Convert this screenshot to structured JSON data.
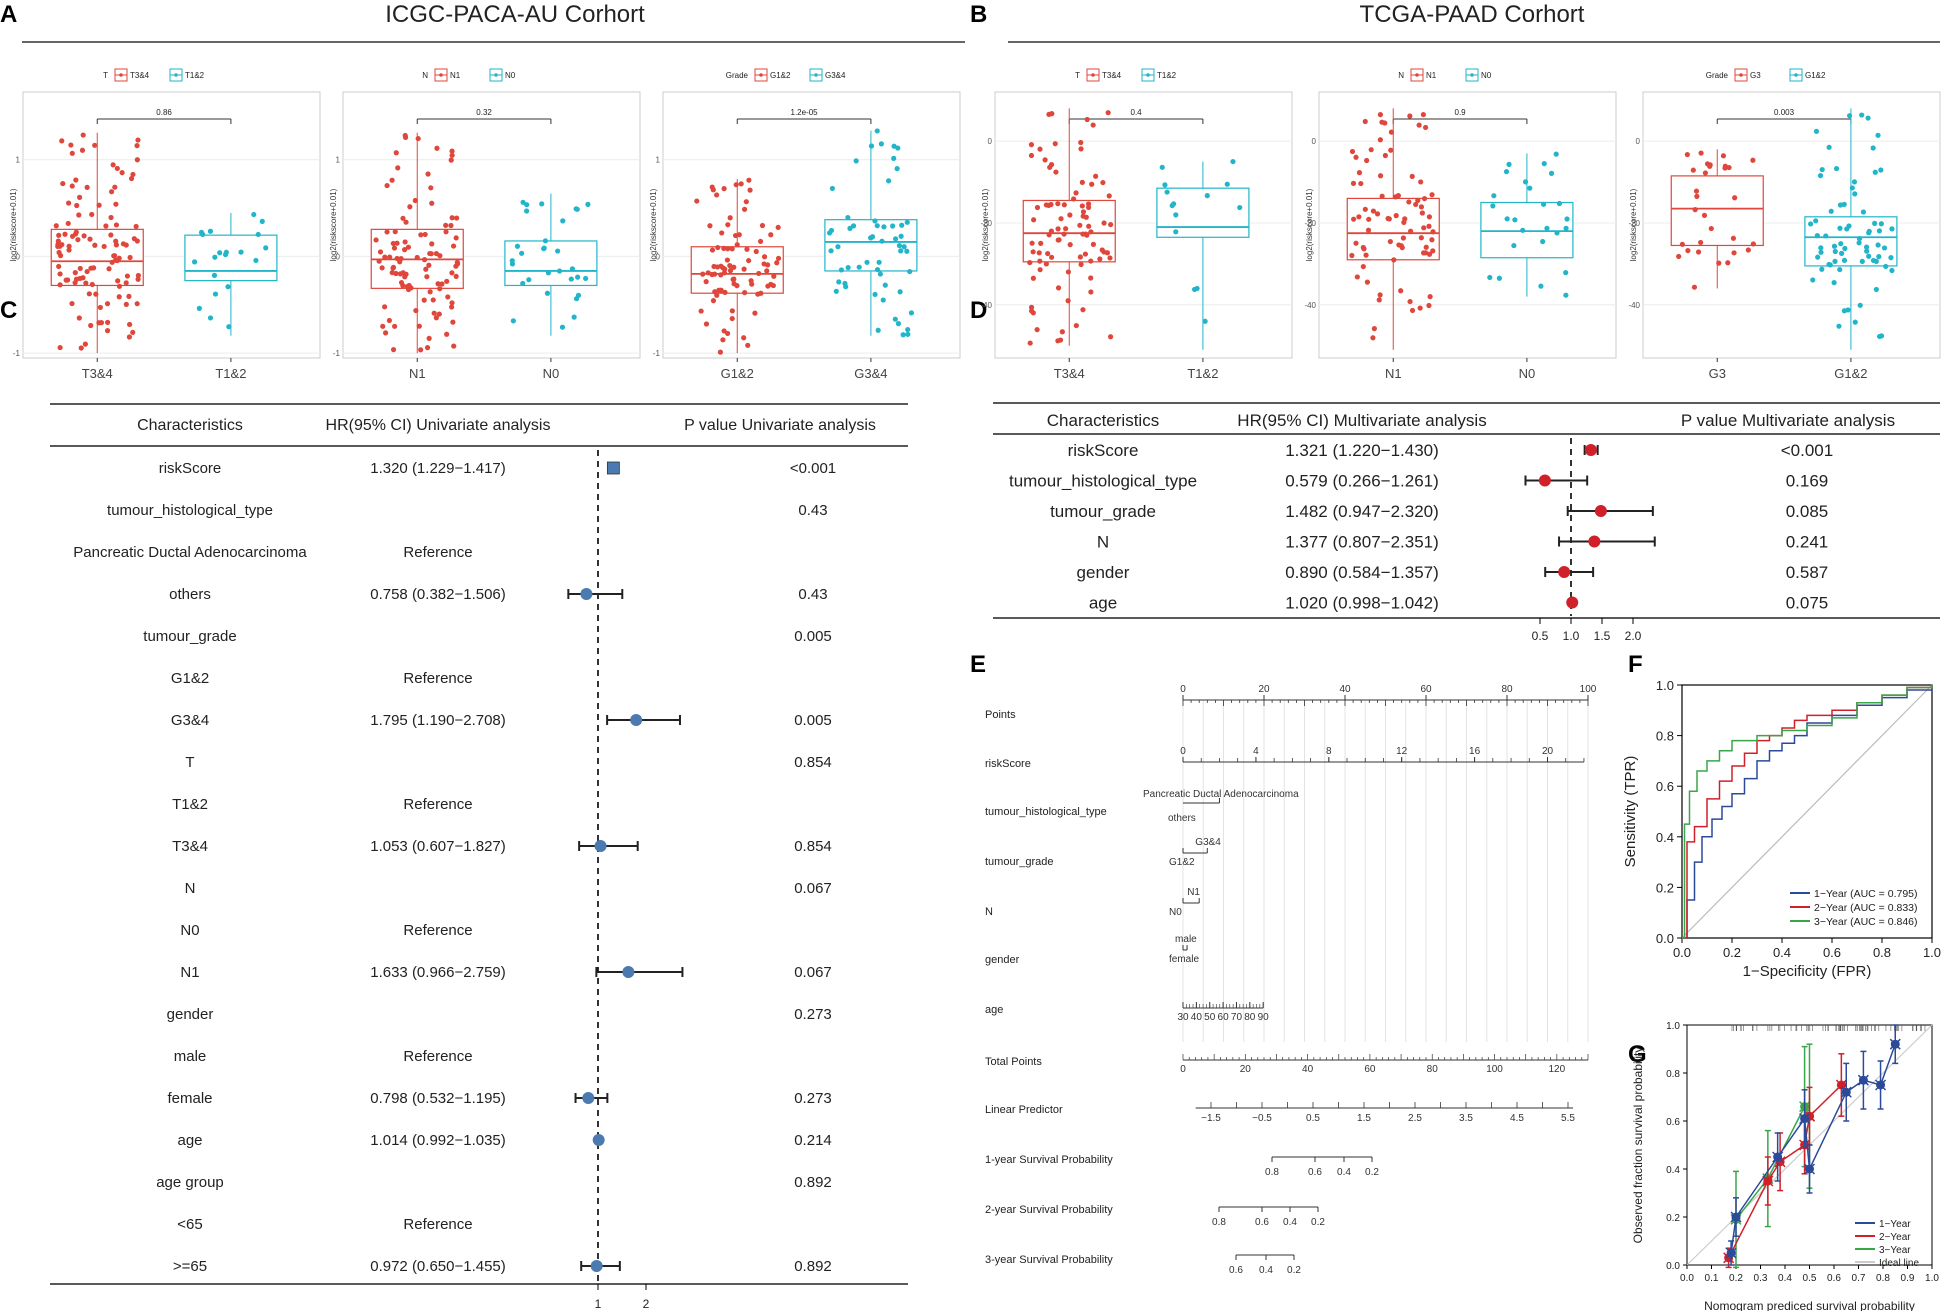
{
  "panels": {
    "A": "A",
    "B": "B",
    "C": "C",
    "D": "D",
    "E": "E",
    "F": "F",
    "G": "G"
  },
  "headers": {
    "A": "ICGC-PACA-AU Corhort",
    "B": "TCGA-PAAD Corhort"
  },
  "colors": {
    "red": "#e0473c",
    "cyan": "#22b5c9",
    "blue": "#2b4a9a",
    "forest_blue": "#4a7ab0",
    "dark_red": "#d0202a",
    "green": "#3aa64a",
    "grey": "#aaaaaa"
  },
  "chart_data": [
    {
      "type": "boxplot",
      "panel": "A",
      "ylabel": "log2(riskscore+0.01)",
      "ylim": [
        -1.05,
        1.7
      ],
      "yticks": [
        -1,
        0,
        1
      ],
      "legend": {
        "title": "T",
        "labels": [
          "T3&4",
          "T1&2"
        ]
      },
      "categories": [
        "T3&4",
        "T1&2"
      ],
      "pvalue": "0.86",
      "groups": [
        {
          "q1": -0.3,
          "median": -0.05,
          "q3": 0.28,
          "lo": -1.0,
          "hi": 1.28,
          "n": 110
        },
        {
          "q1": -0.25,
          "median": -0.15,
          "q3": 0.22,
          "lo": -0.82,
          "hi": 0.45,
          "n": 20
        }
      ]
    },
    {
      "type": "boxplot",
      "panel": "A",
      "ylabel": "log2(riskscore+0.01)",
      "ylim": [
        -1.05,
        1.7
      ],
      "yticks": [
        -1,
        0,
        1
      ],
      "legend": {
        "title": "N",
        "labels": [
          "N1",
          "N0"
        ]
      },
      "categories": [
        "N1",
        "N0"
      ],
      "pvalue": "0.32",
      "groups": [
        {
          "q1": -0.33,
          "median": -0.03,
          "q3": 0.28,
          "lo": -1.0,
          "hi": 1.28,
          "n": 100
        },
        {
          "q1": -0.3,
          "median": -0.15,
          "q3": 0.16,
          "lo": -0.82,
          "hi": 0.65,
          "n": 30
        }
      ]
    },
    {
      "type": "boxplot",
      "panel": "A",
      "ylabel": "log2(riskscore+0.01)",
      "ylim": [
        -1.05,
        1.7
      ],
      "yticks": [
        -1,
        0,
        1
      ],
      "legend": {
        "title": "Grade",
        "labels": [
          "G1&2",
          "G3&4"
        ]
      },
      "categories": [
        "G1&2",
        "G3&4"
      ],
      "pvalue": "1.2e-05",
      "groups": [
        {
          "q1": -0.38,
          "median": -0.18,
          "q3": 0.1,
          "lo": -1.0,
          "hi": 0.8,
          "n": 85
        },
        {
          "q1": -0.15,
          "median": 0.15,
          "q3": 0.38,
          "lo": -0.82,
          "hi": 1.3,
          "n": 55
        }
      ]
    },
    {
      "type": "boxplot",
      "panel": "B",
      "ylabel": "log2(riskscore+0.01)",
      "ylim": [
        -53,
        12
      ],
      "yticks": [
        0,
        -20,
        -40
      ],
      "legend": {
        "title": "T",
        "labels": [
          "T3&4",
          "T1&2"
        ]
      },
      "categories": [
        "T3&4",
        "T1&2"
      ],
      "pvalue": "0.4",
      "groups": [
        {
          "q1": -29.5,
          "median": -22.5,
          "q3": -14.5,
          "lo": -50,
          "hi": 8,
          "n": 90
        },
        {
          "q1": -23.5,
          "median": -21,
          "q3": -11.5,
          "lo": -51,
          "hi": -5,
          "n": 14
        }
      ]
    },
    {
      "type": "boxplot",
      "panel": "B",
      "ylabel": "log2(riskscore+0.01)",
      "ylim": [
        -53,
        12
      ],
      "yticks": [
        0,
        -20,
        -40
      ],
      "legend": {
        "title": "N",
        "labels": [
          "N1",
          "N0"
        ]
      },
      "categories": [
        "N1",
        "N0"
      ],
      "pvalue": "0.9",
      "groups": [
        {
          "q1": -29,
          "median": -22.5,
          "q3": -14,
          "lo": -51,
          "hi": 8,
          "n": 80
        },
        {
          "q1": -28.5,
          "median": -22,
          "q3": -15,
          "lo": -38,
          "hi": -3,
          "n": 25
        }
      ]
    },
    {
      "type": "boxplot",
      "panel": "B",
      "ylabel": "log2(riskscore+0.01)",
      "ylim": [
        -53,
        12
      ],
      "yticks": [
        0,
        -20,
        -40
      ],
      "legend": {
        "title": "Grade",
        "labels": [
          "G3",
          "G1&2"
        ]
      },
      "categories": [
        "G3",
        "G1&2"
      ],
      "pvalue": "0.003",
      "groups": [
        {
          "q1": -25.5,
          "median": -16.5,
          "q3": -8.5,
          "lo": -36,
          "hi": -2,
          "n": 30
        },
        {
          "q1": -30.5,
          "median": -23.5,
          "q3": -18.5,
          "lo": -51,
          "hi": 8,
          "n": 70
        }
      ]
    },
    {
      "type": "forest",
      "panel": "C",
      "columns": [
        "Characteristics",
        "HR(95% CI) Univariate analysis",
        "P value Univariate analysis"
      ],
      "xlim": [
        0.3,
        3.0
      ],
      "ref": 1,
      "xticks": [
        "1",
        "2"
      ],
      "rows": [
        {
          "label": "riskScore",
          "hr": "1.320 (1.229−1.417)",
          "p": "<0.001",
          "est": 1.32,
          "lo": 1.229,
          "hi": 1.417,
          "square": true
        },
        {
          "label": "tumour_histological_type",
          "hr": "",
          "p": "0.43"
        },
        {
          "label": "Pancreatic Ductal Adenocarcinoma",
          "hr": "Reference",
          "p": ""
        },
        {
          "label": "others",
          "hr": "0.758 (0.382−1.506)",
          "p": "0.43",
          "est": 0.758,
          "lo": 0.382,
          "hi": 1.506
        },
        {
          "label": "tumour_grade",
          "hr": "",
          "p": "0.005"
        },
        {
          "label": "G1&2",
          "hr": "Reference",
          "p": ""
        },
        {
          "label": "G3&4",
          "hr": "1.795 (1.190−2.708)",
          "p": "0.005",
          "est": 1.795,
          "lo": 1.19,
          "hi": 2.708
        },
        {
          "label": "T",
          "hr": "",
          "p": "0.854"
        },
        {
          "label": "T1&2",
          "hr": "Reference",
          "p": ""
        },
        {
          "label": "T3&4",
          "hr": "1.053 (0.607−1.827)",
          "p": "0.854",
          "est": 1.053,
          "lo": 0.607,
          "hi": 1.827
        },
        {
          "label": "N",
          "hr": "",
          "p": "0.067"
        },
        {
          "label": "N0",
          "hr": "Reference",
          "p": ""
        },
        {
          "label": "N1",
          "hr": "1.633 (0.966−2.759)",
          "p": "0.067",
          "est": 1.633,
          "lo": 0.966,
          "hi": 2.759
        },
        {
          "label": "gender",
          "hr": "",
          "p": "0.273"
        },
        {
          "label": "male",
          "hr": "Reference",
          "p": ""
        },
        {
          "label": "female",
          "hr": "0.798 (0.532−1.195)",
          "p": "0.273",
          "est": 0.798,
          "lo": 0.532,
          "hi": 1.195
        },
        {
          "label": "age",
          "hr": "1.014 (0.992−1.035)",
          "p": "0.214",
          "est": 1.014,
          "lo": 0.992,
          "hi": 1.035
        },
        {
          "label": "age group",
          "hr": "",
          "p": "0.892"
        },
        {
          "label": "<65",
          "hr": "Reference",
          "p": ""
        },
        {
          "label": ">=65",
          "hr": "0.972 (0.650−1.455)",
          "p": "0.892",
          "est": 0.972,
          "lo": 0.65,
          "hi": 1.455
        }
      ]
    },
    {
      "type": "forest",
      "panel": "D",
      "columns": [
        "Characteristics",
        "HR(95% CI) Multivariate analysis",
        "P value Multivariate analysis"
      ],
      "ref": 1,
      "xticks": [
        "0.5",
        "1.0",
        "1.5",
        "2.0"
      ],
      "rows": [
        {
          "label": "riskScore",
          "hr": "1.321 (1.220−1.430)",
          "p": "<0.001",
          "est": 1.321,
          "lo": 1.22,
          "hi": 1.43
        },
        {
          "label": "tumour_histological_type",
          "hr": "0.579 (0.266−1.261)",
          "p": "0.169",
          "est": 0.579,
          "lo": 0.266,
          "hi": 1.261
        },
        {
          "label": "tumour_grade",
          "hr": "1.482 (0.947−2.320)",
          "p": "0.085",
          "est": 1.482,
          "lo": 0.947,
          "hi": 2.32
        },
        {
          "label": "N",
          "hr": "1.377 (0.807−2.351)",
          "p": "0.241",
          "est": 1.377,
          "lo": 0.807,
          "hi": 2.351
        },
        {
          "label": "gender",
          "hr": "0.890 (0.584−1.357)",
          "p": "0.587",
          "est": 0.89,
          "lo": 0.584,
          "hi": 1.357
        },
        {
          "label": "age",
          "hr": "1.020 (0.998−1.042)",
          "p": "0.075",
          "est": 1.02,
          "lo": 0.998,
          "hi": 1.042
        }
      ]
    },
    {
      "type": "nomogram",
      "panel": "E",
      "rows": [
        {
          "label": "Points",
          "ticks": [
            "0",
            "20",
            "40",
            "60",
            "80",
            "100"
          ]
        },
        {
          "label": "riskScore",
          "ticks": [
            "0",
            "4",
            "8",
            "12",
            "16",
            "20"
          ]
        },
        {
          "label": "tumour_histological_type",
          "labels": [
            "Pancreatic Ductal Adenocarcinoma",
            "others"
          ]
        },
        {
          "label": "tumour_grade",
          "labels": [
            "G3&4",
            "G1&2"
          ]
        },
        {
          "label": "N",
          "labels": [
            "N1",
            "N0"
          ]
        },
        {
          "label": "gender",
          "labels": [
            "male",
            "female"
          ]
        },
        {
          "label": "age",
          "ticks": [
            "30",
            "40",
            "50",
            "60",
            "70",
            "80",
            "90"
          ]
        },
        {
          "label": "Total Points",
          "ticks": [
            "0",
            "20",
            "40",
            "60",
            "80",
            "100",
            "120"
          ]
        },
        {
          "label": "Linear Predictor",
          "ticks": [
            "−1.5",
            "−0.5",
            "0.5",
            "1.5",
            "2.5",
            "3.5",
            "4.5",
            "5.5"
          ]
        },
        {
          "label": "1-year Survival Probability",
          "ticks": [
            "0.8",
            "0.6",
            "0.4",
            "0.2"
          ]
        },
        {
          "label": "2-year Survival Probability",
          "ticks": [
            "0.8",
            "0.6",
            "0.4",
            "0.2"
          ]
        },
        {
          "label": "3-year Survival Probability",
          "ticks": [
            "0.6",
            "0.4",
            "0.2"
          ]
        }
      ]
    },
    {
      "type": "line",
      "panel": "F",
      "xlabel": "1−Specificity (FPR)",
      "ylabel": "Sensitivity (TPR)",
      "xlim": [
        0,
        1
      ],
      "ylim": [
        0,
        1
      ],
      "xticks": [
        "0.0",
        "0.2",
        "0.4",
        "0.6",
        "0.8",
        "1.0"
      ],
      "yticks": [
        "0.0",
        "0.2",
        "0.4",
        "0.6",
        "0.8",
        "1.0"
      ],
      "series": [
        {
          "name": "1−Year (AUC = 0.795)",
          "color": "#2b4a9a",
          "x": [
            0,
            0.02,
            0.05,
            0.08,
            0.12,
            0.16,
            0.2,
            0.25,
            0.3,
            0.35,
            0.4,
            0.45,
            0.5,
            0.6,
            0.7,
            0.8,
            0.9,
            1.0
          ],
          "y": [
            0,
            0.15,
            0.3,
            0.4,
            0.47,
            0.52,
            0.57,
            0.63,
            0.7,
            0.74,
            0.77,
            0.8,
            0.85,
            0.88,
            0.92,
            0.95,
            0.98,
            1.0
          ]
        },
        {
          "name": "2−Year (AUC = 0.833)",
          "color": "#d0202a",
          "x": [
            0,
            0.02,
            0.05,
            0.1,
            0.15,
            0.2,
            0.25,
            0.3,
            0.35,
            0.4,
            0.45,
            0.5,
            0.6,
            0.7,
            0.8,
            0.9,
            1.0
          ],
          "y": [
            0,
            0.38,
            0.44,
            0.55,
            0.62,
            0.68,
            0.73,
            0.78,
            0.8,
            0.83,
            0.86,
            0.88,
            0.9,
            0.93,
            0.96,
            0.99,
            1.0
          ]
        },
        {
          "name": "3−Year (AUC = 0.846)",
          "color": "#3aa64a",
          "x": [
            0,
            0.01,
            0.03,
            0.06,
            0.1,
            0.15,
            0.2,
            0.3,
            0.4,
            0.5,
            0.6,
            0.7,
            0.8,
            0.9,
            1.0
          ],
          "y": [
            0,
            0.45,
            0.58,
            0.66,
            0.7,
            0.74,
            0.78,
            0.8,
            0.82,
            0.84,
            0.87,
            0.93,
            0.96,
            0.99,
            1.0
          ]
        }
      ]
    },
    {
      "type": "scatter",
      "panel": "G",
      "xlabel": "Nomogram prediced survival probability",
      "ylabel": "Observed fraction survival probability",
      "xlim": [
        0,
        1
      ],
      "ylim": [
        0,
        1
      ],
      "xticks": [
        "0.0",
        "0.1",
        "0.2",
        "0.3",
        "0.4",
        "0.5",
        "0.6",
        "0.7",
        "0.8",
        "0.9",
        "1.0"
      ],
      "yticks": [
        "0.0",
        "0.2",
        "0.4",
        "0.6",
        "0.8",
        "1.0"
      ],
      "series": [
        {
          "name": "1−Year",
          "color": "#2b4a9a",
          "x": [
            0.18,
            0.2,
            0.37,
            0.48,
            0.5,
            0.65,
            0.72,
            0.79,
            0.85
          ],
          "y": [
            0.05,
            0.2,
            0.45,
            0.61,
            0.4,
            0.72,
            0.77,
            0.75,
            0.92
          ],
          "err": [
            0.05,
            0.08,
            0.1,
            0.12,
            0.1,
            0.12,
            0.12,
            0.1,
            0.08
          ]
        },
        {
          "name": "2−Year",
          "color": "#d0202a",
          "x": [
            0.17,
            0.33,
            0.38,
            0.48,
            0.5,
            0.63
          ],
          "y": [
            0.03,
            0.35,
            0.43,
            0.5,
            0.62,
            0.75
          ],
          "err": [
            0.04,
            0.1,
            0.12,
            0.12,
            0.12,
            0.13
          ]
        },
        {
          "name": "3−Year",
          "color": "#3aa64a",
          "x": [
            0.2,
            0.33,
            0.48,
            0.5
          ],
          "y": [
            0.19,
            0.36,
            0.66,
            0.62
          ],
          "err": [
            0.2,
            0.2,
            0.25,
            0.3
          ]
        },
        {
          "name": "Ideal line",
          "color": "#bbbbbb"
        }
      ]
    }
  ]
}
